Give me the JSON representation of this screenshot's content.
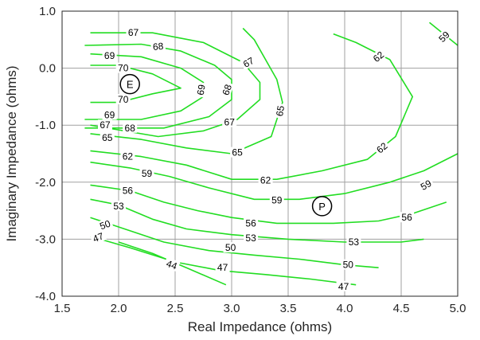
{
  "chart_data": {
    "type": "contour",
    "title": "",
    "xlabel": "Real Impedance (ohms)",
    "ylabel": "Imaginary Impedance (ohms)",
    "xlim": [
      1.5,
      5.0
    ],
    "ylim": [
      -4.0,
      1.0
    ],
    "xticks": [
      1.5,
      2.0,
      2.5,
      3.0,
      3.5,
      4.0,
      4.5,
      5.0
    ],
    "xtick_labels": [
      "1.5",
      "2.0",
      "2.5",
      "3.0",
      "3.5",
      "4.0",
      "4.5",
      "5.0"
    ],
    "yticks": [
      1.0,
      0.0,
      -1.0,
      -2.0,
      -3.0,
      -4.0
    ],
    "ytick_labels": [
      "1.0",
      "0.0",
      "-1.0",
      "-2.0",
      "-3.0",
      "-4.0"
    ],
    "grid": true,
    "line_color": "#22dd22",
    "grid_color": "#a0a0a0",
    "contours": [
      {
        "level": 70,
        "label": "70",
        "points": [
          [
            1.75,
            0.05
          ],
          [
            2.0,
            0.05
          ],
          [
            2.3,
            -0.1
          ],
          [
            2.55,
            -0.35
          ],
          [
            2.3,
            -0.45
          ],
          [
            2.0,
            -0.6
          ],
          [
            1.75,
            -0.6
          ]
        ],
        "labels": [
          {
            "text": "70",
            "at": [
              2.04,
              0.0
            ],
            "angle": 0
          },
          {
            "text": "70",
            "at": [
              2.04,
              -0.55
            ],
            "angle": 0
          }
        ]
      },
      {
        "level": 69,
        "label": "69",
        "points": [
          [
            1.75,
            0.25
          ],
          [
            2.2,
            0.2
          ],
          [
            2.55,
            0.0
          ],
          [
            2.75,
            -0.25
          ],
          [
            2.75,
            -0.5
          ],
          [
            2.55,
            -0.75
          ],
          [
            2.2,
            -0.9
          ],
          [
            1.7,
            -0.9
          ]
        ],
        "labels": [
          {
            "text": "69",
            "at": [
              1.92,
              0.22
            ],
            "angle": 0
          },
          {
            "text": "69",
            "at": [
              2.73,
              -0.38
            ],
            "angle": -80
          },
          {
            "text": "69",
            "at": [
              1.92,
              -0.82
            ],
            "angle": 0
          }
        ]
      },
      {
        "level": 68,
        "label": "68",
        "points": [
          [
            1.7,
            0.4
          ],
          [
            2.2,
            0.42
          ],
          [
            2.55,
            0.3
          ],
          [
            2.85,
            0.05
          ],
          [
            3.0,
            -0.2
          ],
          [
            3.0,
            -0.55
          ],
          [
            2.8,
            -0.85
          ],
          [
            2.4,
            -1.05
          ],
          [
            1.7,
            -1.05
          ]
        ],
        "labels": [
          {
            "text": "68",
            "at": [
              2.35,
              0.38
            ],
            "angle": -5
          },
          {
            "text": "68",
            "at": [
              2.96,
              -0.38
            ],
            "angle": -70
          },
          {
            "text": "68",
            "at": [
              2.1,
              -1.05
            ],
            "angle": 0
          }
        ]
      },
      {
        "level": 67,
        "label": "67",
        "points": [
          [
            1.75,
            0.62
          ],
          [
            2.3,
            0.62
          ],
          [
            2.75,
            0.45
          ],
          [
            3.1,
            0.1
          ],
          [
            3.25,
            -0.25
          ],
          [
            3.25,
            -0.55
          ],
          [
            3.05,
            -0.9
          ],
          [
            2.75,
            -1.1
          ],
          [
            2.35,
            -1.2
          ],
          [
            1.75,
            -1.0
          ]
        ],
        "labels": [
          {
            "text": "67",
            "at": [
              2.13,
              0.62
            ],
            "angle": 0
          },
          {
            "text": "67",
            "at": [
              3.15,
              0.1
            ],
            "angle": -30
          },
          {
            "text": "67",
            "at": [
              2.98,
              -0.95
            ],
            "angle": 0
          },
          {
            "text": "67",
            "at": [
              1.88,
              -1.0
            ],
            "angle": 0
          }
        ]
      },
      {
        "level": 65,
        "label": "65",
        "points": [
          [
            1.75,
            -1.15
          ],
          [
            2.2,
            -1.25
          ],
          [
            2.6,
            -1.4
          ],
          [
            3.0,
            -1.5
          ],
          [
            3.35,
            -1.2
          ],
          [
            3.45,
            -0.6
          ],
          [
            3.4,
            -0.2
          ],
          [
            3.2,
            0.5
          ],
          [
            3.1,
            0.7
          ]
        ],
        "labels": [
          {
            "text": "65",
            "at": [
              1.9,
              -1.22
            ],
            "angle": 0
          },
          {
            "text": "65",
            "at": [
              3.05,
              -1.48
            ],
            "angle": 0
          },
          {
            "text": "65",
            "at": [
              3.43,
              -0.75
            ],
            "angle": -80
          }
        ]
      },
      {
        "level": 62,
        "label": "62",
        "points": [
          [
            1.75,
            -1.45
          ],
          [
            2.2,
            -1.55
          ],
          [
            2.6,
            -1.7
          ],
          [
            3.0,
            -1.95
          ],
          [
            3.4,
            -1.95
          ],
          [
            3.8,
            -1.8
          ],
          [
            4.2,
            -1.6
          ],
          [
            4.45,
            -1.2
          ],
          [
            4.6,
            -0.5
          ],
          [
            4.4,
            0.15
          ],
          [
            4.1,
            0.45
          ],
          [
            3.9,
            0.6
          ]
        ],
        "labels": [
          {
            "text": "62",
            "at": [
              2.08,
              -1.55
            ],
            "angle": 0
          },
          {
            "text": "62",
            "at": [
              3.3,
              -1.97
            ],
            "angle": 0
          },
          {
            "text": "62",
            "at": [
              4.33,
              -1.4
            ],
            "angle": -40
          },
          {
            "text": "62",
            "at": [
              4.3,
              0.2
            ],
            "angle": -40
          }
        ]
      },
      {
        "level": 59,
        "label": "59",
        "points": [
          [
            1.75,
            -1.65
          ],
          [
            2.1,
            -1.75
          ],
          [
            2.45,
            -1.9
          ],
          [
            2.8,
            -2.1
          ],
          [
            3.2,
            -2.3
          ],
          [
            3.6,
            -2.3
          ],
          [
            4.0,
            -2.2
          ],
          [
            4.4,
            -2.0
          ],
          [
            4.7,
            -1.8
          ],
          [
            5.0,
            -1.5
          ]
        ],
        "labels": [
          {
            "text": "59",
            "at": [
              2.25,
              -1.85
            ],
            "angle": 0
          },
          {
            "text": "59",
            "at": [
              3.4,
              -2.32
            ],
            "angle": 0
          },
          {
            "text": "59",
            "at": [
              4.72,
              -2.05
            ],
            "angle": -30
          },
          {
            "text": "59",
            "at": [
              4.88,
              0.55
            ],
            "angle": -45
          }
        ],
        "extra": [
          [
            4.75,
            0.8
          ],
          [
            5.0,
            0.4
          ]
        ]
      },
      {
        "level": 56,
        "label": "56",
        "points": [
          [
            1.75,
            -2.05
          ],
          [
            2.1,
            -2.15
          ],
          [
            2.4,
            -2.35
          ],
          [
            2.7,
            -2.5
          ],
          [
            3.0,
            -2.62
          ],
          [
            3.4,
            -2.72
          ],
          [
            3.9,
            -2.72
          ],
          [
            4.3,
            -2.68
          ],
          [
            4.6,
            -2.55
          ],
          [
            4.9,
            -2.35
          ]
        ],
        "labels": [
          {
            "text": "56",
            "at": [
              2.08,
              -2.15
            ],
            "angle": 0
          },
          {
            "text": "56",
            "at": [
              3.17,
              -2.72
            ],
            "angle": 0
          },
          {
            "text": "56",
            "at": [
              4.55,
              -2.62
            ],
            "angle": 0
          }
        ]
      },
      {
        "level": 53,
        "label": "53",
        "points": [
          [
            1.75,
            -2.3
          ],
          [
            2.0,
            -2.4
          ],
          [
            2.3,
            -2.65
          ],
          [
            2.6,
            -2.82
          ],
          [
            3.0,
            -2.92
          ],
          [
            3.5,
            -3.0
          ],
          [
            4.0,
            -3.05
          ],
          [
            4.5,
            -3.05
          ],
          [
            4.7,
            -3.0
          ]
        ],
        "labels": [
          {
            "text": "53",
            "at": [
              2.0,
              -2.42
            ],
            "angle": 0
          },
          {
            "text": "53",
            "at": [
              3.17,
              -2.98
            ],
            "angle": 0
          },
          {
            "text": "53",
            "at": [
              4.08,
              -3.05
            ],
            "angle": 0
          }
        ]
      },
      {
        "level": 50,
        "label": "50",
        "points": [
          [
            1.75,
            -2.62
          ],
          [
            2.1,
            -2.85
          ],
          [
            2.4,
            -3.05
          ],
          [
            2.8,
            -3.2
          ],
          [
            3.2,
            -3.28
          ],
          [
            3.6,
            -3.35
          ],
          [
            4.0,
            -3.45
          ],
          [
            4.3,
            -3.5
          ]
        ],
        "labels": [
          {
            "text": "50",
            "at": [
              1.88,
              -2.75
            ],
            "angle": -20
          },
          {
            "text": "50",
            "at": [
              2.99,
              -3.15
            ],
            "angle": 0
          },
          {
            "text": "50",
            "at": [
              4.03,
              -3.45
            ],
            "angle": 0
          }
        ]
      },
      {
        "level": 47,
        "label": "47",
        "points": [
          [
            1.75,
            -2.95
          ],
          [
            2.1,
            -3.15
          ],
          [
            2.5,
            -3.4
          ],
          [
            2.9,
            -3.55
          ],
          [
            3.3,
            -3.62
          ],
          [
            3.7,
            -3.7
          ],
          [
            4.1,
            -3.8
          ]
        ],
        "labels": [
          {
            "text": "47",
            "at": [
              1.82,
              -2.97
            ],
            "angle": -20
          },
          {
            "text": "47",
            "at": [
              2.92,
              -3.5
            ],
            "angle": 0
          },
          {
            "text": "47",
            "at": [
              3.99,
              -3.83
            ],
            "angle": 0
          }
        ]
      },
      {
        "level": 44,
        "label": "44",
        "points": [
          [
            2.0,
            -3.05
          ],
          [
            2.3,
            -3.25
          ],
          [
            2.6,
            -3.5
          ],
          [
            2.95,
            -3.8
          ]
        ],
        "labels": [
          {
            "text": "44",
            "at": [
              2.47,
              -3.45
            ],
            "angle": 20
          }
        ]
      }
    ],
    "markers": [
      {
        "text": "E",
        "at": [
          2.1,
          -0.28
        ]
      },
      {
        "text": "P",
        "at": [
          3.8,
          -2.42
        ]
      }
    ]
  }
}
